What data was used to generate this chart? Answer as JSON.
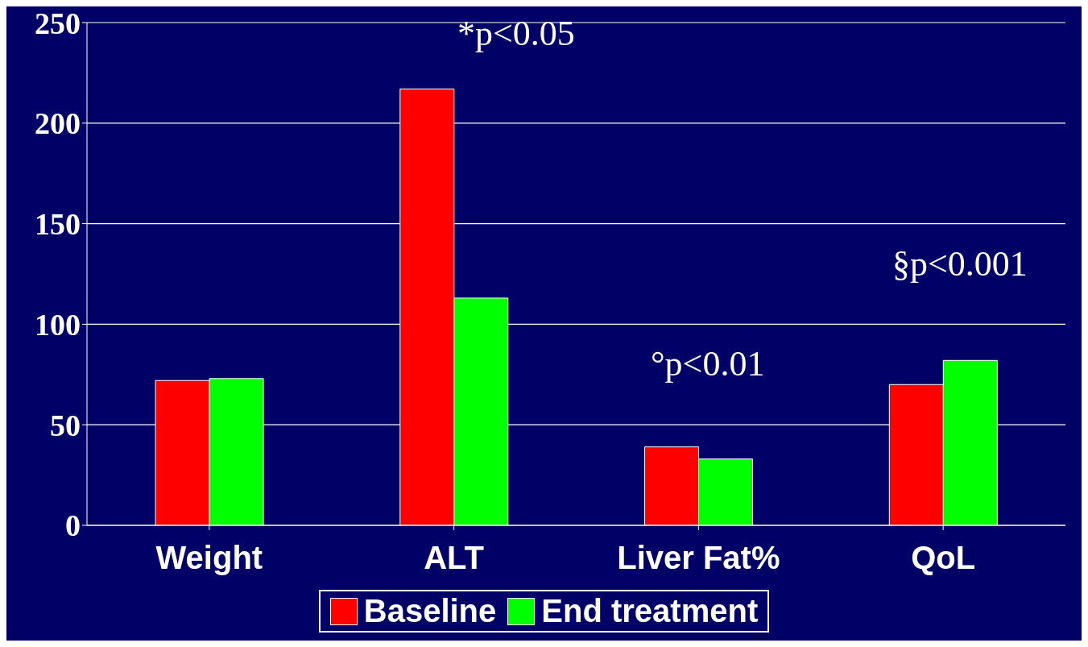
{
  "chart_data": {
    "type": "bar",
    "categories": [
      "Weight",
      "ALT",
      "Liver Fat%",
      "QoL"
    ],
    "series": [
      {
        "name": "Baseline",
        "color": "#ff0000",
        "values": [
          72,
          217,
          39,
          70
        ]
      },
      {
        "name": "End treatment",
        "color": "#00ff00",
        "values": [
          73,
          113,
          33,
          82
        ]
      }
    ],
    "ylim": [
      0,
      250
    ],
    "yticks": [
      0,
      50,
      100,
      150,
      200,
      250
    ],
    "grid": "y",
    "legend": "bottom",
    "annotations": [
      "*p<0.05",
      "°p<0.01",
      "§p<0.001"
    ]
  }
}
